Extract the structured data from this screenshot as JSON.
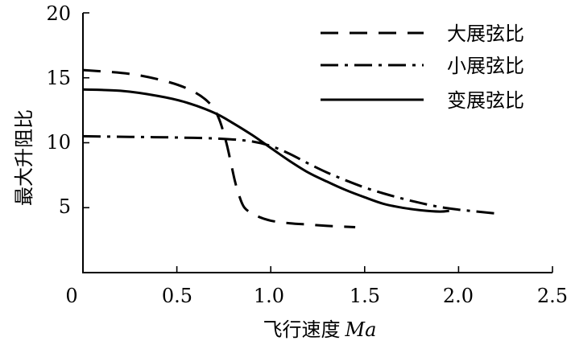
{
  "chart_data": {
    "type": "line",
    "xlabel": "飞行速度",
    "xlabel_var": "Ma",
    "ylabel": "最大升阻比",
    "xlim": [
      0,
      2.5
    ],
    "ylim": [
      0,
      20
    ],
    "x_ticks": [
      "0",
      "0.5",
      "1.0",
      "1.5",
      "2.0",
      "2.5"
    ],
    "y_ticks": [
      "5",
      "10",
      "15",
      "20"
    ],
    "x_tick_values": [
      0,
      0.5,
      1.0,
      1.5,
      2.0,
      2.5
    ],
    "y_tick_values": [
      5,
      10,
      15,
      20
    ],
    "grid": false,
    "legend_position": "top-right",
    "series": [
      {
        "name": "大展弦比",
        "style": "dashed",
        "x": [
          0,
          0.25,
          0.45,
          0.58,
          0.67,
          0.72,
          0.76,
          0.79,
          0.81,
          0.83,
          0.86,
          0.92,
          1.0,
          1.1,
          1.2,
          1.3,
          1.45
        ],
        "y": [
          15.6,
          15.3,
          14.7,
          14.0,
          13.1,
          12.0,
          10.2,
          8.3,
          7.0,
          6.0,
          5.0,
          4.4,
          4.0,
          3.8,
          3.7,
          3.6,
          3.5
        ]
      },
      {
        "name": "小展弦比",
        "style": "dashdot",
        "x": [
          0,
          0.25,
          0.5,
          0.75,
          0.9,
          1.0,
          1.1,
          1.2,
          1.3,
          1.4,
          1.5,
          1.6,
          1.7,
          1.8,
          1.9,
          2.0,
          2.1,
          2.2
        ],
        "y": [
          10.5,
          10.45,
          10.4,
          10.3,
          10.1,
          9.75,
          9.15,
          8.4,
          7.7,
          7.1,
          6.55,
          6.1,
          5.7,
          5.35,
          5.05,
          4.85,
          4.7,
          4.55
        ]
      },
      {
        "name": "变展弦比",
        "style": "solid",
        "x": [
          0,
          0.2,
          0.4,
          0.55,
          0.7,
          0.8,
          0.9,
          1.0,
          1.1,
          1.2,
          1.3,
          1.4,
          1.5,
          1.6,
          1.7,
          1.8,
          1.9,
          1.95
        ],
        "y": [
          14.1,
          14.0,
          13.6,
          13.1,
          12.3,
          11.5,
          10.6,
          9.6,
          8.6,
          7.7,
          7.0,
          6.35,
          5.8,
          5.3,
          5.0,
          4.8,
          4.7,
          4.75
        ]
      }
    ]
  }
}
